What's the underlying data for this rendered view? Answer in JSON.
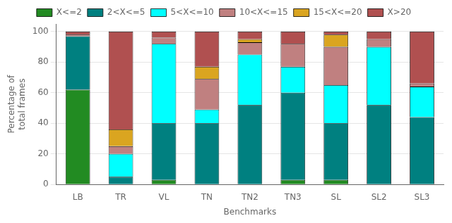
{
  "chart_data": {
    "type": "bar",
    "stacked": true,
    "categories": [
      "LB",
      "TR",
      "VL",
      "TN",
      "TN2",
      "TN3",
      "SL",
      "SL2",
      "SL3"
    ],
    "series": [
      {
        "name": "X<=2",
        "color": "#228B22",
        "values": [
          62,
          0,
          3,
          0,
          0,
          3,
          3,
          0,
          0
        ]
      },
      {
        "name": "2<X<=5",
        "color": "#008080",
        "values": [
          35,
          5,
          37,
          40,
          52,
          57,
          37,
          52,
          44
        ]
      },
      {
        "name": "5<X<=10",
        "color": "#00FFFF",
        "values": [
          0,
          15,
          52,
          9,
          33,
          17,
          25,
          38,
          20
        ]
      },
      {
        "name": "10<X<=15",
        "color": "#C08080",
        "values": [
          1,
          5,
          4,
          20,
          8,
          15,
          25,
          5,
          2
        ]
      },
      {
        "name": "15<X<=20",
        "color": "#DAA520",
        "values": [
          0,
          11,
          0,
          8,
          2,
          0,
          8,
          0,
          0
        ]
      },
      {
        "name": "X>20",
        "color": "#B05050",
        "values": [
          2,
          64,
          4,
          23,
          5,
          8,
          2,
          5,
          34
        ]
      }
    ],
    "ylabel": "Percentage of\ntotal frames",
    "xlabel": "Benchmarks",
    "ylim": [
      0,
      105
    ],
    "yticks": [
      0,
      20,
      40,
      60,
      80,
      100
    ],
    "grid": true,
    "legend": "top"
  }
}
